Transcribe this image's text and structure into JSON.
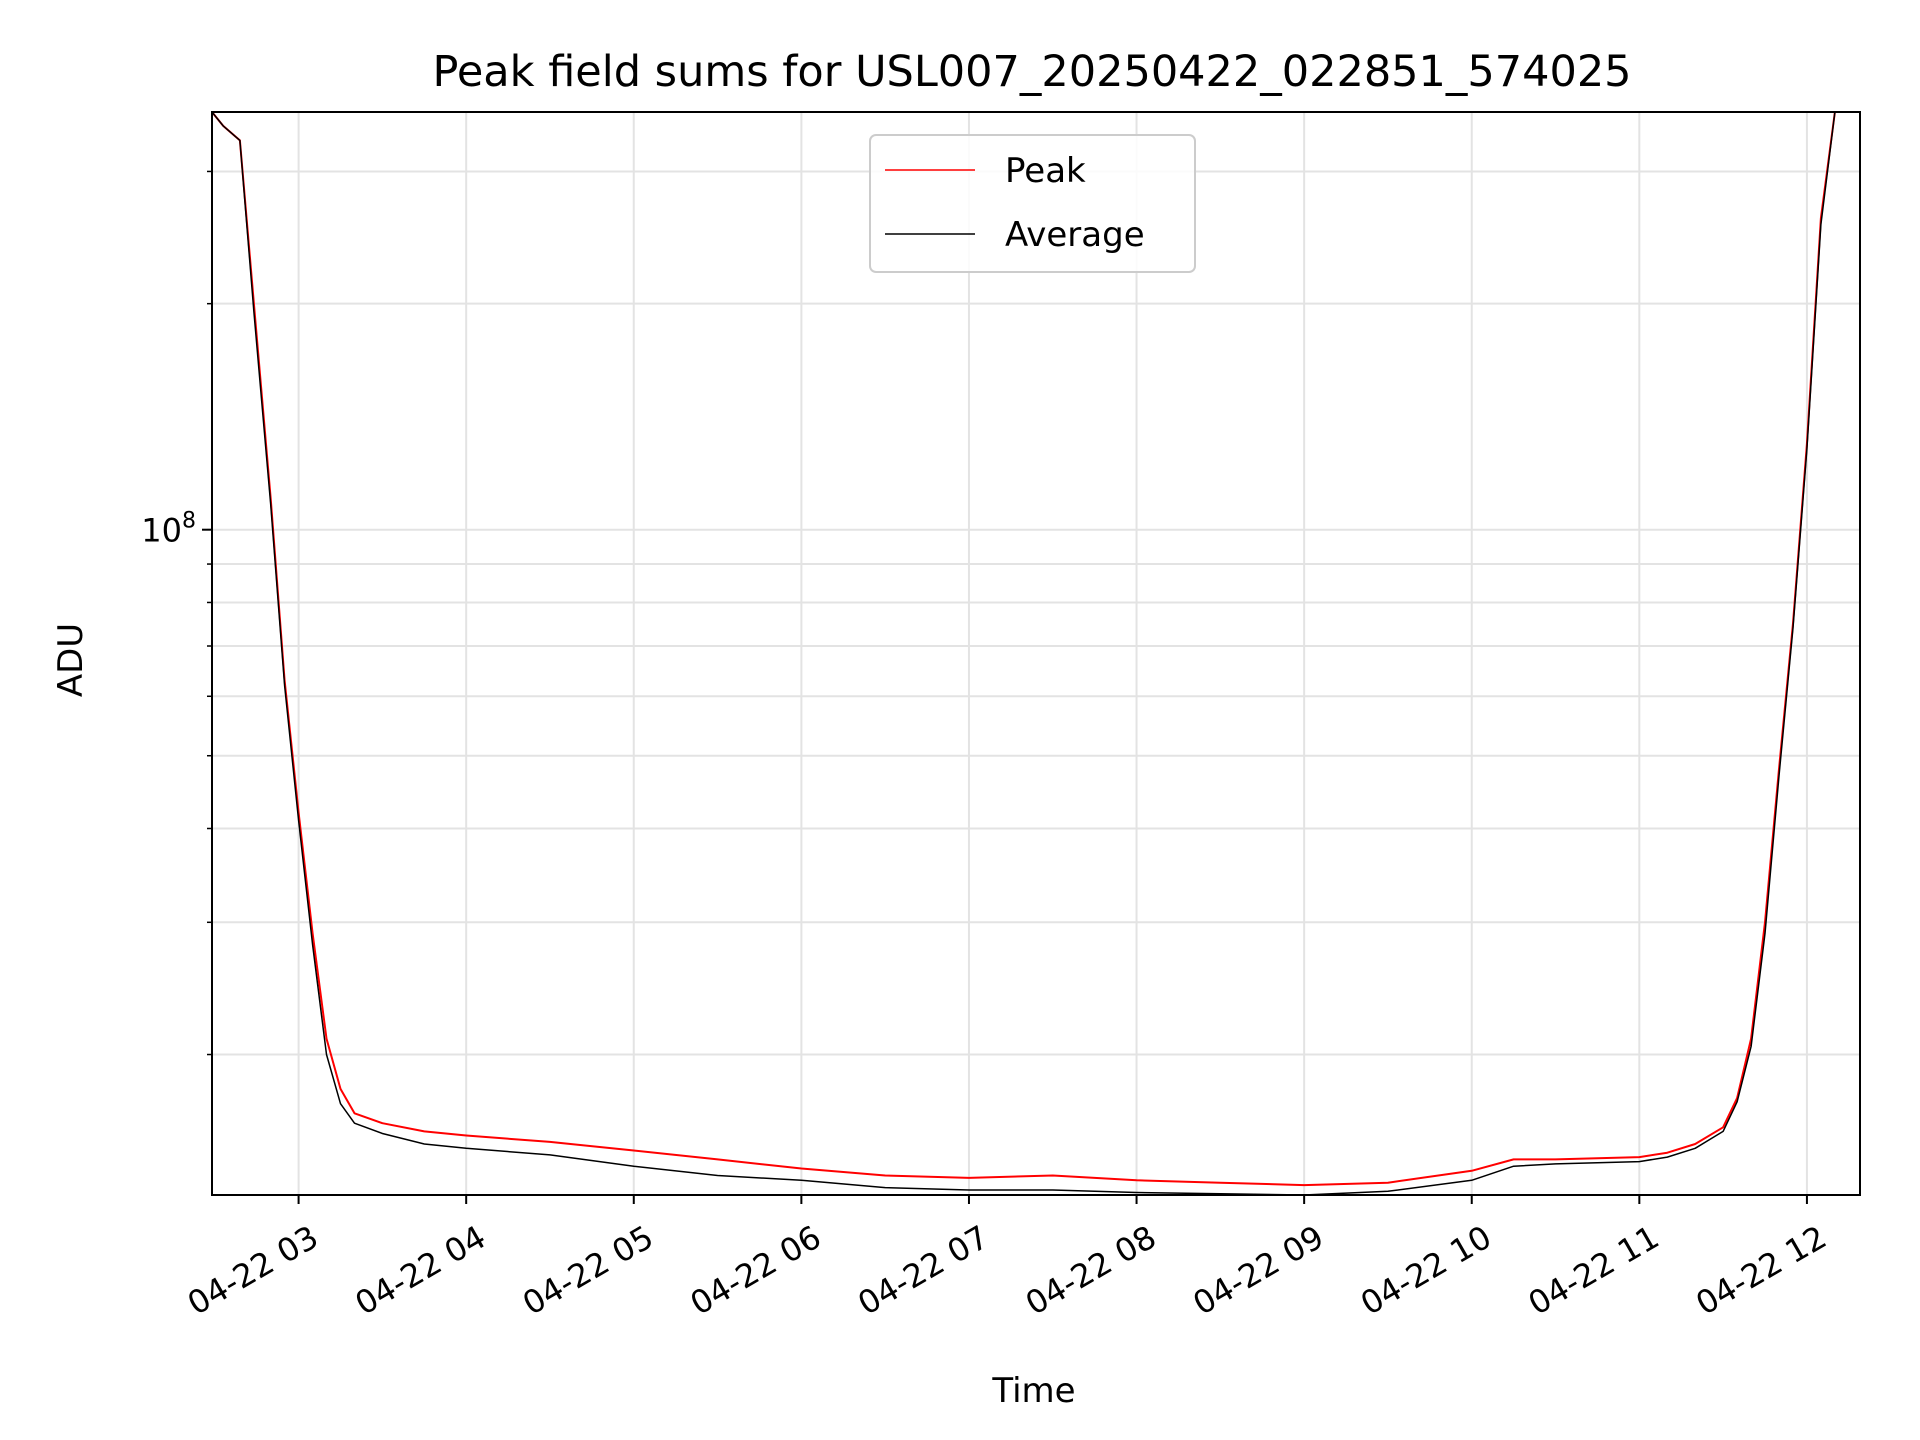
{
  "chart_data": {
    "type": "line",
    "title": "Peak field sums for USL007_20250422_022851_574025",
    "xlabel": "Time",
    "ylabel": "ADU",
    "yscale": "log",
    "xlim": [
      "2025-04-22 02:29",
      "2025-04-22 12:19"
    ],
    "ylim": [
      13000000,
      360000000
    ],
    "x_ticks": [
      "04-22 03",
      "04-22 04",
      "04-22 05",
      "04-22 06",
      "04-22 07",
      "04-22 08",
      "04-22 09",
      "04-22 10",
      "04-22 11",
      "04-22 12"
    ],
    "y_ticks": [
      {
        "value": 100000000,
        "base": "10",
        "exponent": "8"
      }
    ],
    "grid": true,
    "legend": "upper center",
    "series": [
      {
        "name": "Peak",
        "color": "#ff0000",
        "x": [
          "2025-04-22 02:29",
          "2025-04-22 02:33",
          "2025-04-22 02:39",
          "2025-04-22 02:44",
          "2025-04-22 02:50",
          "2025-04-22 02:55",
          "2025-04-22 03:00",
          "2025-04-22 03:05",
          "2025-04-22 03:10",
          "2025-04-22 03:15",
          "2025-04-22 03:20",
          "2025-04-22 03:30",
          "2025-04-22 03:45",
          "2025-04-22 04:00",
          "2025-04-22 04:30",
          "2025-04-22 05:00",
          "2025-04-22 05:30",
          "2025-04-22 06:00",
          "2025-04-22 06:30",
          "2025-04-22 07:00",
          "2025-04-22 07:30",
          "2025-04-22 08:00",
          "2025-04-22 08:30",
          "2025-04-22 09:00",
          "2025-04-22 09:30",
          "2025-04-22 10:00",
          "2025-04-22 10:15",
          "2025-04-22 10:30",
          "2025-04-22 11:00",
          "2025-04-22 11:10",
          "2025-04-22 11:20",
          "2025-04-22 11:30",
          "2025-04-22 11:35",
          "2025-04-22 11:40",
          "2025-04-22 11:45",
          "2025-04-22 11:50",
          "2025-04-22 11:55",
          "2025-04-22 12:00",
          "2025-04-22 12:05",
          "2025-04-22 12:10"
        ],
        "y": [
          360000000,
          345000000,
          330000000,
          200000000,
          110000000,
          63000000,
          42000000,
          29000000,
          21000000,
          18000000,
          16700000,
          16200000,
          15800000,
          15600000,
          15300000,
          14900000,
          14500000,
          14100000,
          13800000,
          13700000,
          13800000,
          13600000,
          13500000,
          13400000,
          13500000,
          14000000,
          14500000,
          14500000,
          14600000,
          14800000,
          15200000,
          16000000,
          17500000,
          21000000,
          30000000,
          48000000,
          75000000,
          130000000,
          260000000,
          360000000
        ]
      },
      {
        "name": "Average",
        "color": "#000000",
        "x": [
          "2025-04-22 02:29",
          "2025-04-22 02:33",
          "2025-04-22 02:39",
          "2025-04-22 02:44",
          "2025-04-22 02:50",
          "2025-04-22 02:55",
          "2025-04-22 03:00",
          "2025-04-22 03:05",
          "2025-04-22 03:10",
          "2025-04-22 03:15",
          "2025-04-22 03:20",
          "2025-04-22 03:30",
          "2025-04-22 03:45",
          "2025-04-22 04:00",
          "2025-04-22 04:30",
          "2025-04-22 05:00",
          "2025-04-22 05:30",
          "2025-04-22 06:00",
          "2025-04-22 06:30",
          "2025-04-22 07:00",
          "2025-04-22 07:30",
          "2025-04-22 08:00",
          "2025-04-22 08:30",
          "2025-04-22 09:00",
          "2025-04-22 09:30",
          "2025-04-22 10:00",
          "2025-04-22 10:15",
          "2025-04-22 10:30",
          "2025-04-22 11:00",
          "2025-04-22 11:10",
          "2025-04-22 11:20",
          "2025-04-22 11:30",
          "2025-04-22 11:35",
          "2025-04-22 11:40",
          "2025-04-22 11:45",
          "2025-04-22 11:50",
          "2025-04-22 11:55",
          "2025-04-22 12:00",
          "2025-04-22 12:05",
          "2025-04-22 12:10"
        ],
        "y": [
          360000000,
          345000000,
          330000000,
          195000000,
          108000000,
          62000000,
          41000000,
          28000000,
          20000000,
          17200000,
          16200000,
          15700000,
          15200000,
          15000000,
          14700000,
          14200000,
          13800000,
          13600000,
          13300000,
          13200000,
          13200000,
          13100000,
          13050000,
          13000000,
          13150000,
          13600000,
          14200000,
          14300000,
          14400000,
          14600000,
          15000000,
          15800000,
          17300000,
          20500000,
          29000000,
          47000000,
          74000000,
          128000000,
          255000000,
          360000000
        ]
      }
    ]
  }
}
